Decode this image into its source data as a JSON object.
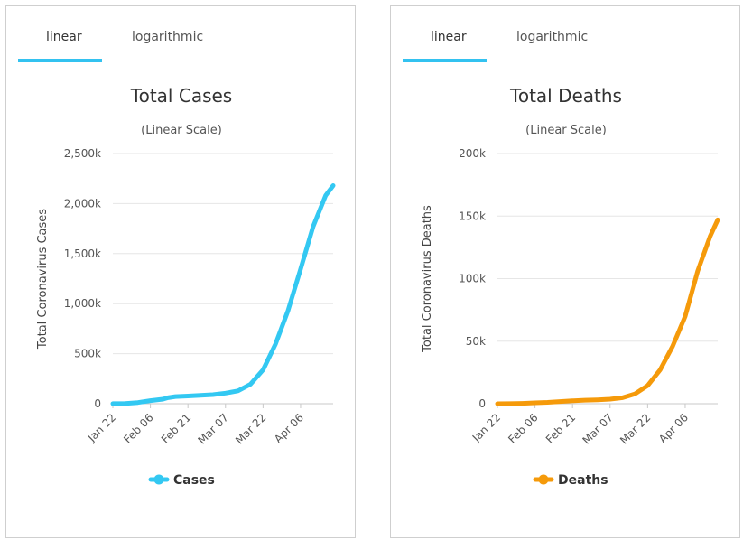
{
  "panels": [
    {
      "tabs": [
        "linear",
        "logarithmic"
      ],
      "active_tab": 0,
      "accent": "#33c2f0"
    },
    {
      "tabs": [
        "linear",
        "logarithmic"
      ],
      "active_tab": 0,
      "accent": "#33c2f0"
    }
  ],
  "chart_data": [
    {
      "type": "line",
      "title": "Total Cases",
      "subtitle": "(Linear Scale)",
      "ylabel": "Total Coronavirus Cases",
      "xlabel": "",
      "ylim": [
        0,
        2500000
      ],
      "yticks": [
        0,
        500000,
        1000000,
        1500000,
        2000000,
        2500000
      ],
      "ytick_labels": [
        "0",
        "500k",
        "1,000k",
        "1,500k",
        "2,000k",
        "2,500k"
      ],
      "xticks": [
        "Jan 22",
        "Feb 06",
        "Feb 21",
        "Mar 07",
        "Mar 22",
        "Apr 06"
      ],
      "grid": true,
      "legend": "bottom",
      "series": [
        {
          "name": "Cases",
          "color": "#33c8f2",
          "x": [
            "Jan 22",
            "Jan 27",
            "Feb 01",
            "Feb 06",
            "Feb 11",
            "Feb 13",
            "Feb 16",
            "Feb 21",
            "Feb 26",
            "Mar 02",
            "Mar 07",
            "Mar 12",
            "Mar 17",
            "Mar 22",
            "Mar 27",
            "Apr 01",
            "Apr 06",
            "Apr 11",
            "Apr 16",
            "Apr 19"
          ],
          "values": [
            600,
            3000,
            12000,
            31000,
            45000,
            60000,
            71000,
            77000,
            83000,
            90000,
            106000,
            128000,
            195000,
            338000,
            597000,
            932000,
            1347000,
            1770000,
            2080000,
            2180000
          ]
        }
      ]
    },
    {
      "type": "line",
      "title": "Total Deaths",
      "subtitle": "(Linear Scale)",
      "ylabel": "Total Coronavirus Deaths",
      "xlabel": "",
      "ylim": [
        0,
        200000
      ],
      "yticks": [
        0,
        50000,
        100000,
        150000,
        200000
      ],
      "ytick_labels": [
        "0",
        "50k",
        "100k",
        "150k",
        "200k"
      ],
      "xticks": [
        "Jan 22",
        "Feb 06",
        "Feb 21",
        "Mar 07",
        "Mar 22",
        "Apr 06"
      ],
      "grid": true,
      "legend": "bottom",
      "series": [
        {
          "name": "Deaths",
          "color": "#f59a0a",
          "x": [
            "Jan 22",
            "Jan 27",
            "Feb 01",
            "Feb 06",
            "Feb 11",
            "Feb 16",
            "Feb 21",
            "Feb 26",
            "Mar 02",
            "Mar 07",
            "Mar 12",
            "Mar 17",
            "Mar 22",
            "Mar 27",
            "Apr 01",
            "Apr 06",
            "Apr 11",
            "Apr 16",
            "Apr 19"
          ],
          "values": [
            17,
            100,
            300,
            700,
            1100,
            1700,
            2300,
            2800,
            3100,
            3600,
            4800,
            7900,
            14500,
            27000,
            46000,
            70000,
            106000,
            134000,
            147000
          ]
        }
      ]
    }
  ]
}
